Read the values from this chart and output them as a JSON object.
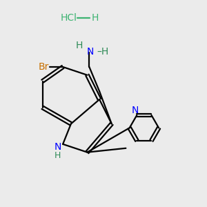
{
  "bg_color": "#ebebeb",
  "bond_color": "#000000",
  "n_color": "#0000ff",
  "br_color": "#c87000",
  "hcl_color": "#3cb371",
  "nh_color": "#2e8b57",
  "line_width": 1.6,
  "figsize": [
    3.0,
    3.0
  ],
  "dpi": 100,
  "xlim": [
    0,
    10
  ],
  "ylim": [
    0,
    10
  ]
}
